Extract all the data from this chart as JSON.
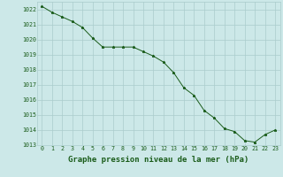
{
  "x": [
    0,
    1,
    2,
    3,
    4,
    5,
    6,
    7,
    8,
    9,
    10,
    11,
    12,
    13,
    14,
    15,
    16,
    17,
    18,
    19,
    20,
    21,
    22,
    23
  ],
  "y": [
    1022.2,
    1021.8,
    1021.5,
    1021.2,
    1020.8,
    1020.1,
    1019.5,
    1019.5,
    1019.5,
    1019.5,
    1019.2,
    1018.9,
    1018.5,
    1017.8,
    1016.8,
    1016.3,
    1015.3,
    1014.8,
    1014.1,
    1013.9,
    1013.3,
    1013.2,
    1013.7,
    1014.0
  ],
  "ylim": [
    1013,
    1022.5
  ],
  "yticks": [
    1013,
    1014,
    1015,
    1016,
    1017,
    1018,
    1019,
    1020,
    1021,
    1022
  ],
  "xticks": [
    0,
    1,
    2,
    3,
    4,
    5,
    6,
    7,
    8,
    9,
    10,
    11,
    12,
    13,
    14,
    15,
    16,
    17,
    18,
    19,
    20,
    21,
    22,
    23
  ],
  "line_color": "#1a5c1a",
  "marker": "*",
  "marker_size": 2.2,
  "bg_color": "#cce8e8",
  "grid_color": "#aacccc",
  "xlabel": "Graphe pression niveau de la mer (hPa)",
  "xlabel_fontsize": 6.5,
  "tick_fontsize": 4.8,
  "linewidth": 0.7
}
